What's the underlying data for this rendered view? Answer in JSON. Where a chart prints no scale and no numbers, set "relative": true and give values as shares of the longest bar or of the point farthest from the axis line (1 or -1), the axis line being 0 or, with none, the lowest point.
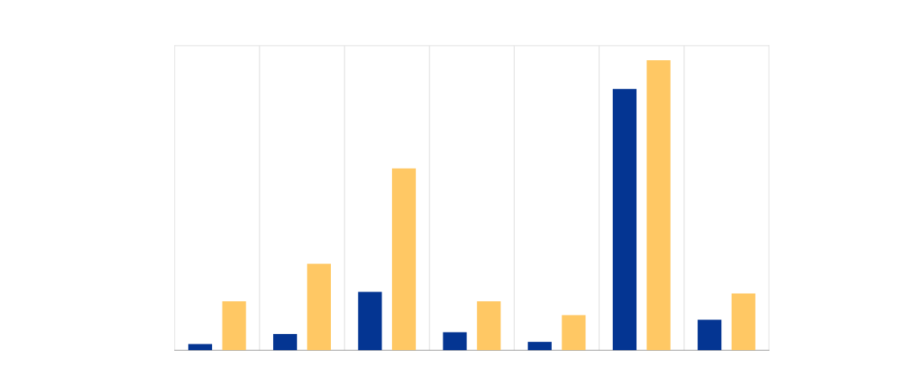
{
  "chart_data": {
    "type": "bar",
    "relative": true,
    "grid": "x",
    "categories": [
      null,
      null,
      null,
      null,
      null,
      null,
      null
    ],
    "series": [
      {
        "color": "#043592",
        "values": [
          0.021,
          0.056,
          0.201,
          0.062,
          0.029,
          0.901,
          0.105
        ]
      },
      {
        "color": "#ffc864",
        "values": [
          0.169,
          0.298,
          0.627,
          0.169,
          0.121,
          1,
          0.196
        ]
      }
    ]
  }
}
